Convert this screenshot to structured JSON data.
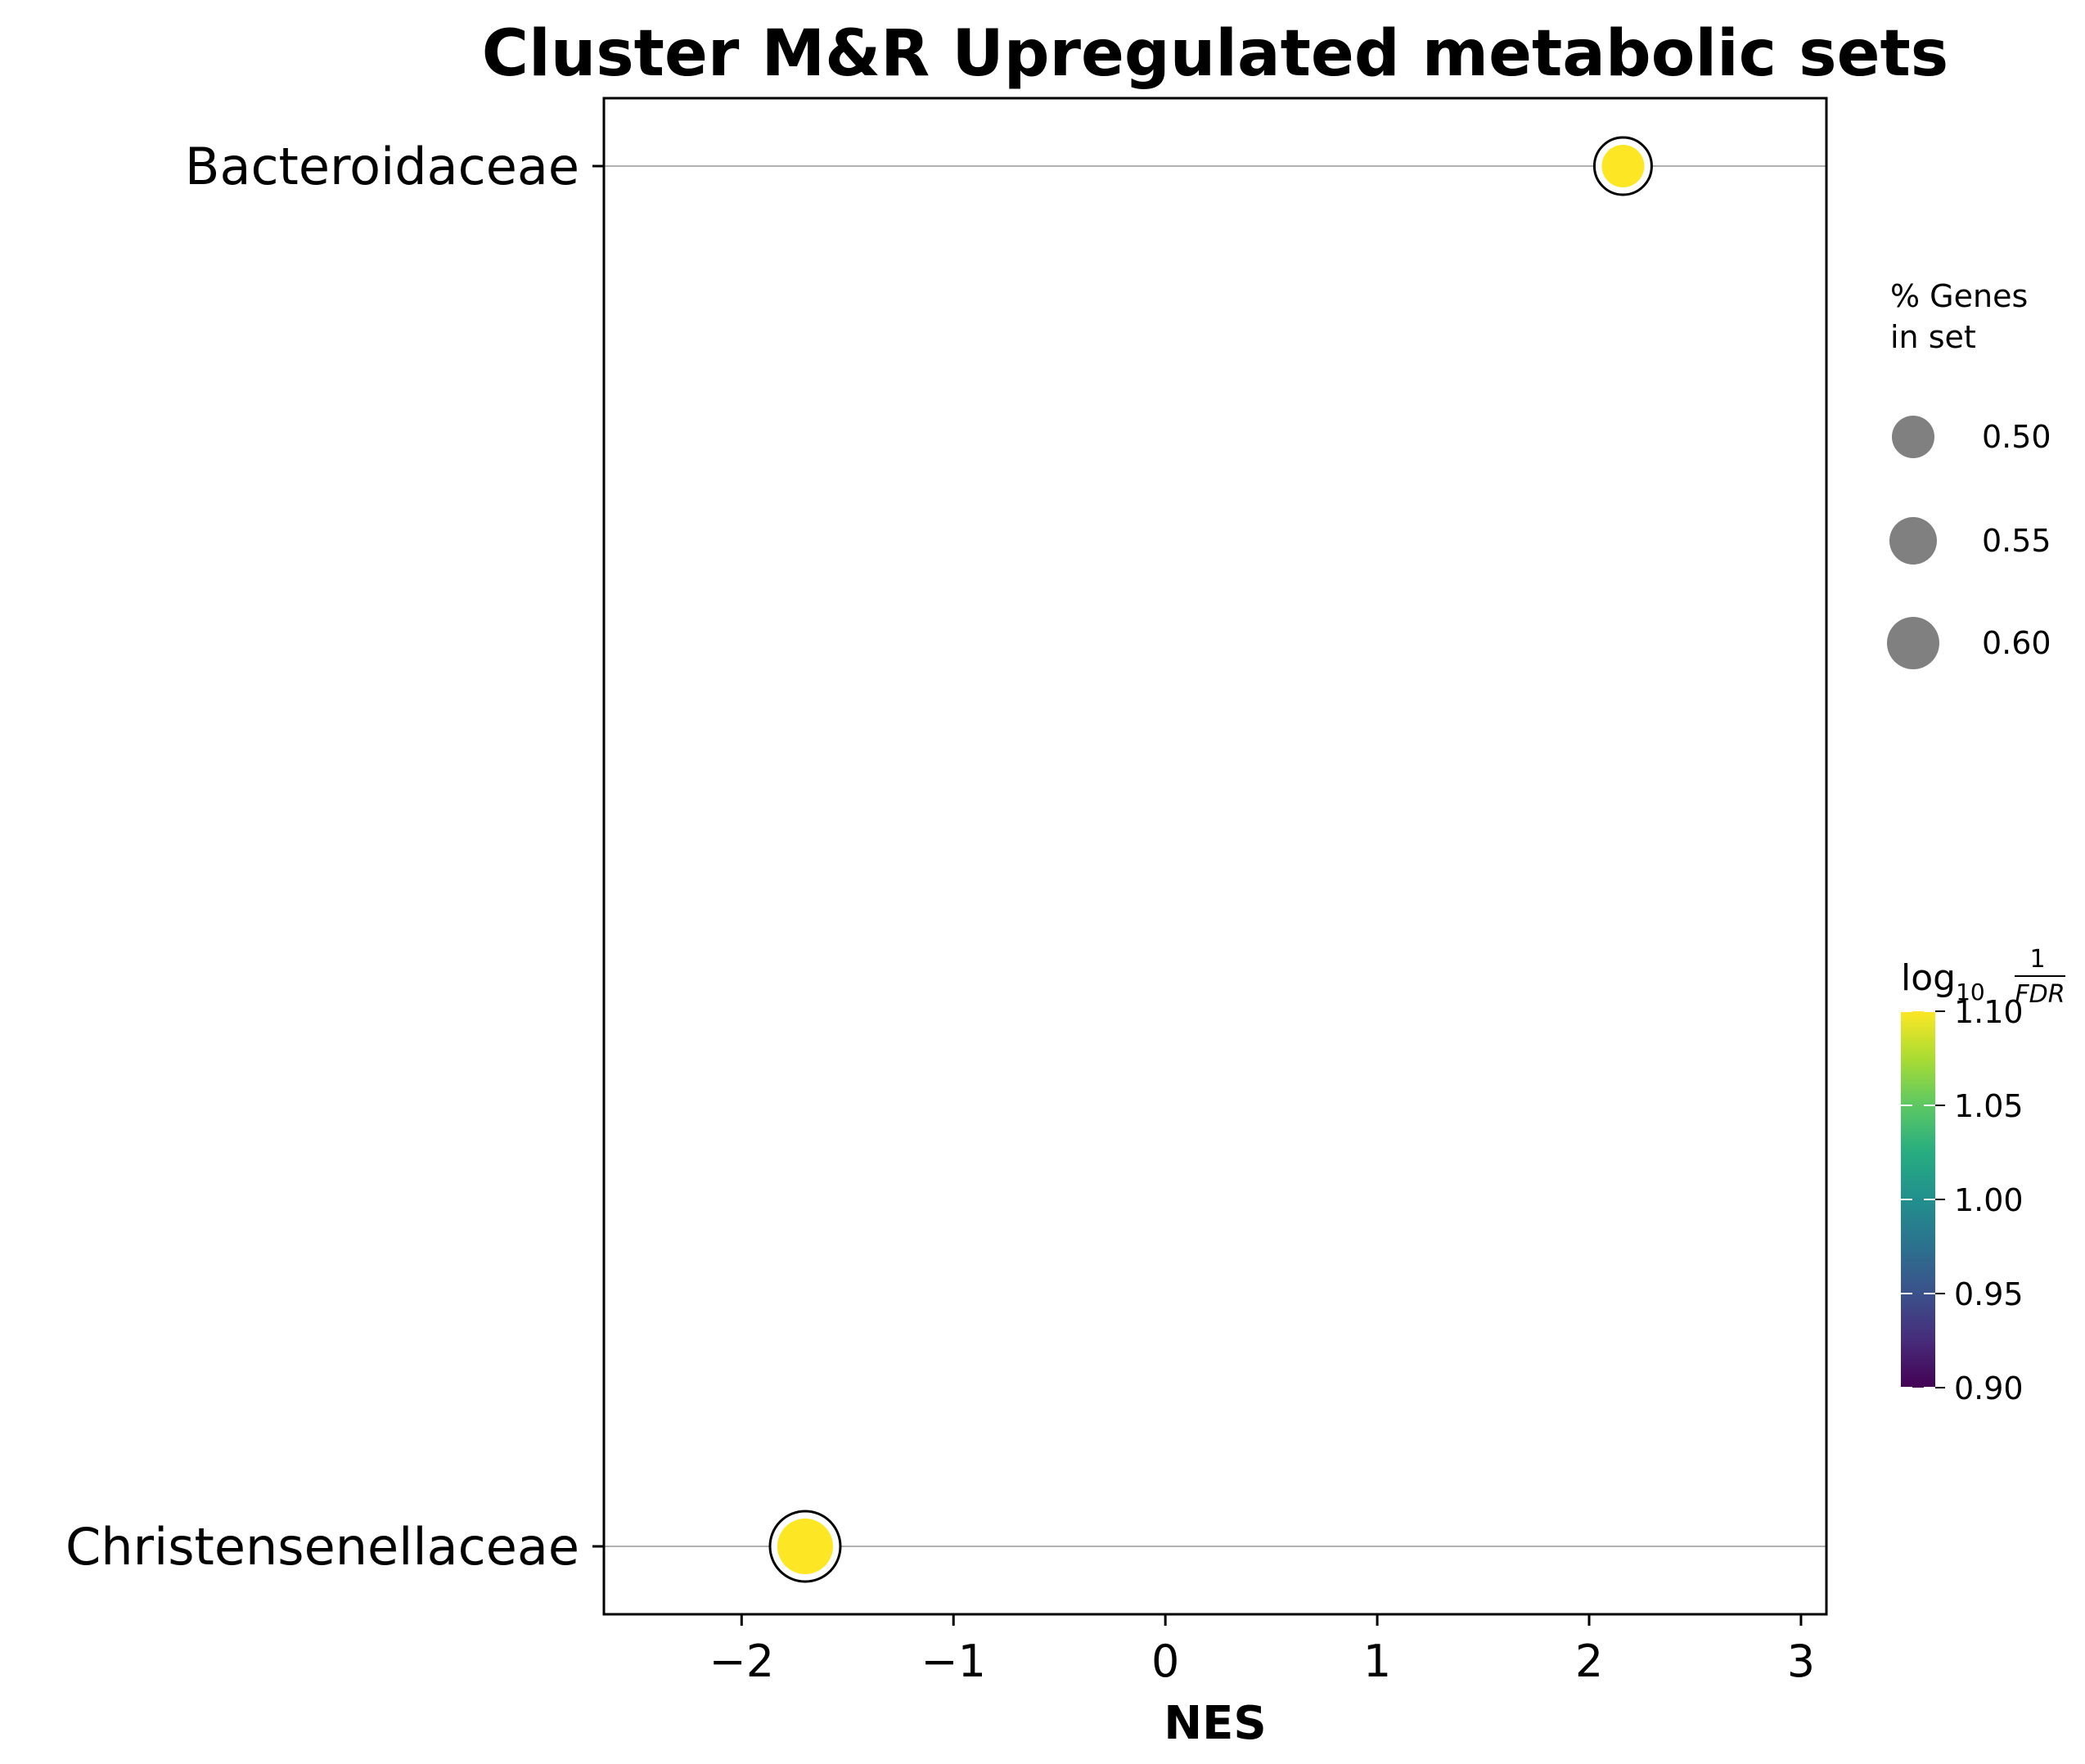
{
  "chart_data": {
    "type": "scatter",
    "title": "Cluster M&R Upregulated metabolic sets",
    "xlabel": "NES",
    "ylabel": "",
    "xlim": [
      -2.65,
      3.12
    ],
    "x_ticks": [
      -2,
      -1,
      0,
      1,
      2,
      3
    ],
    "x_tick_labels": [
      "−2",
      "−1",
      "0",
      "1",
      "2",
      "3"
    ],
    "categories": [
      "Bacteroidaceae",
      "Christensenellaceae"
    ],
    "grid": "horizontal lines at each category",
    "points": [
      {
        "category": "Bacteroidaceae",
        "nes": 2.16,
        "pct_genes": 0.5,
        "log10_inv_fdr": 1.1
      },
      {
        "category": "Christensenellaceae",
        "nes": -1.7,
        "pct_genes": 0.6,
        "log10_inv_fdr": 1.1
      }
    ],
    "size_legend": {
      "title_line1": "% Genes",
      "title_line2": "in set",
      "placement": "right",
      "entries": [
        {
          "value": 0.5,
          "label": "0.50"
        },
        {
          "value": 0.55,
          "label": "0.55"
        },
        {
          "value": 0.6,
          "label": "0.60"
        }
      ]
    },
    "colorbar": {
      "title_log": "log",
      "title_sub": "10",
      "title_num": "1",
      "title_den": "FDR",
      "placement": "right",
      "colormap": "viridis",
      "range": [
        0.9,
        1.1
      ],
      "ticks": [
        0.9,
        0.95,
        1.0,
        1.05,
        1.1
      ],
      "tick_labels": [
        "0.90",
        "0.95",
        "1.00",
        "1.05",
        "1.10"
      ]
    },
    "colors": {
      "marker_fill": "#fde725",
      "marker_edge": "#000000",
      "legend_marker": "#808080",
      "gridline": "#b0b0b0"
    }
  }
}
